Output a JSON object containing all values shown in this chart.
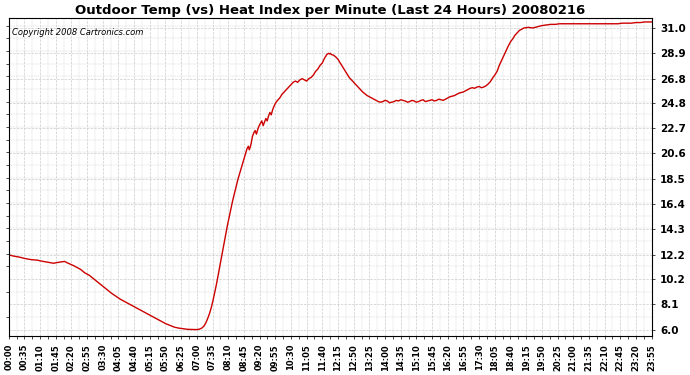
{
  "title": "Outdoor Temp (vs) Heat Index per Minute (Last 24 Hours) 20080216",
  "copyright": "Copyright 2008 Cartronics.com",
  "line_color": "#cc0000",
  "background_color": "#ffffff",
  "grid_color": "#cccccc",
  "yticks": [
    6.0,
    8.1,
    10.2,
    12.2,
    14.3,
    16.4,
    18.5,
    20.6,
    22.7,
    24.8,
    26.8,
    28.9,
    31.0
  ],
  "ylim": [
    5.5,
    31.8
  ],
  "xtick_labels": [
    "00:00",
    "00:35",
    "01:10",
    "01:45",
    "02:20",
    "02:55",
    "03:30",
    "04:05",
    "04:40",
    "05:15",
    "05:50",
    "06:25",
    "07:00",
    "07:35",
    "08:10",
    "08:45",
    "09:20",
    "09:55",
    "10:30",
    "11:05",
    "11:40",
    "12:15",
    "12:50",
    "13:25",
    "14:00",
    "14:35",
    "15:10",
    "15:45",
    "16:20",
    "16:55",
    "17:30",
    "18:05",
    "18:40",
    "19:15",
    "19:50",
    "20:25",
    "21:00",
    "21:35",
    "22:10",
    "22:45",
    "23:20",
    "23:55"
  ],
  "num_xticks": 42,
  "xlim_min": 0,
  "xlim_max": 1435,
  "curve_points": [
    [
      0,
      12.2
    ],
    [
      5,
      12.15
    ],
    [
      10,
      12.1
    ],
    [
      17,
      12.05
    ],
    [
      25,
      12.0
    ],
    [
      35,
      11.9
    ],
    [
      50,
      11.8
    ],
    [
      65,
      11.75
    ],
    [
      70,
      11.7
    ],
    [
      85,
      11.6
    ],
    [
      100,
      11.5
    ],
    [
      115,
      11.6
    ],
    [
      125,
      11.65
    ],
    [
      130,
      11.55
    ],
    [
      145,
      11.3
    ],
    [
      160,
      11.0
    ],
    [
      170,
      10.7
    ],
    [
      180,
      10.5
    ],
    [
      190,
      10.2
    ],
    [
      200,
      9.9
    ],
    [
      210,
      9.6
    ],
    [
      220,
      9.3
    ],
    [
      230,
      9.0
    ],
    [
      240,
      8.75
    ],
    [
      250,
      8.5
    ],
    [
      260,
      8.3
    ],
    [
      270,
      8.1
    ],
    [
      280,
      7.9
    ],
    [
      290,
      7.7
    ],
    [
      300,
      7.5
    ],
    [
      310,
      7.3
    ],
    [
      320,
      7.1
    ],
    [
      330,
      6.9
    ],
    [
      340,
      6.7
    ],
    [
      350,
      6.5
    ],
    [
      360,
      6.35
    ],
    [
      370,
      6.2
    ],
    [
      380,
      6.12
    ],
    [
      390,
      6.07
    ],
    [
      400,
      6.02
    ],
    [
      410,
      6.01
    ],
    [
      415,
      6.0
    ],
    [
      420,
      6.0
    ],
    [
      422,
      6.01
    ],
    [
      425,
      6.03
    ],
    [
      428,
      6.07
    ],
    [
      432,
      6.15
    ],
    [
      436,
      6.3
    ],
    [
      440,
      6.55
    ],
    [
      444,
      6.9
    ],
    [
      448,
      7.3
    ],
    [
      452,
      7.8
    ],
    [
      456,
      8.4
    ],
    [
      460,
      9.1
    ],
    [
      464,
      9.8
    ],
    [
      468,
      10.6
    ],
    [
      472,
      11.4
    ],
    [
      476,
      12.2
    ],
    [
      480,
      13.0
    ],
    [
      484,
      13.8
    ],
    [
      488,
      14.6
    ],
    [
      492,
      15.3
    ],
    [
      496,
      16.0
    ],
    [
      500,
      16.7
    ],
    [
      504,
      17.3
    ],
    [
      508,
      17.9
    ],
    [
      512,
      18.5
    ],
    [
      516,
      19.0
    ],
    [
      520,
      19.5
    ],
    [
      524,
      20.0
    ],
    [
      528,
      20.5
    ],
    [
      532,
      21.0
    ],
    [
      535,
      21.2
    ],
    [
      537,
      20.9
    ],
    [
      539,
      21.1
    ],
    [
      541,
      21.4
    ],
    [
      544,
      22.0
    ],
    [
      547,
      22.3
    ],
    [
      550,
      22.5
    ],
    [
      553,
      22.2
    ],
    [
      556,
      22.6
    ],
    [
      559,
      22.9
    ],
    [
      562,
      23.1
    ],
    [
      565,
      23.3
    ],
    [
      568,
      22.9
    ],
    [
      571,
      23.2
    ],
    [
      574,
      23.5
    ],
    [
      577,
      23.3
    ],
    [
      580,
      23.7
    ],
    [
      583,
      24.0
    ],
    [
      586,
      23.8
    ],
    [
      589,
      24.2
    ],
    [
      592,
      24.5
    ],
    [
      596,
      24.8
    ],
    [
      600,
      25.0
    ],
    [
      605,
      25.2
    ],
    [
      610,
      25.5
    ],
    [
      615,
      25.7
    ],
    [
      620,
      25.9
    ],
    [
      625,
      26.1
    ],
    [
      630,
      26.3
    ],
    [
      635,
      26.5
    ],
    [
      640,
      26.6
    ],
    [
      645,
      26.5
    ],
    [
      650,
      26.7
    ],
    [
      655,
      26.8
    ],
    [
      660,
      26.7
    ],
    [
      665,
      26.6
    ],
    [
      670,
      26.8
    ],
    [
      675,
      26.9
    ],
    [
      680,
      27.1
    ],
    [
      685,
      27.4
    ],
    [
      690,
      27.6
    ],
    [
      695,
      27.9
    ],
    [
      700,
      28.1
    ],
    [
      705,
      28.5
    ],
    [
      710,
      28.8
    ],
    [
      714,
      28.9
    ],
    [
      716,
      28.85
    ],
    [
      718,
      28.9
    ],
    [
      720,
      28.8
    ],
    [
      725,
      28.75
    ],
    [
      730,
      28.6
    ],
    [
      735,
      28.4
    ],
    [
      740,
      28.1
    ],
    [
      745,
      27.8
    ],
    [
      750,
      27.5
    ],
    [
      755,
      27.2
    ],
    [
      760,
      26.9
    ],
    [
      765,
      26.7
    ],
    [
      770,
      26.5
    ],
    [
      775,
      26.3
    ],
    [
      780,
      26.1
    ],
    [
      785,
      25.9
    ],
    [
      790,
      25.7
    ],
    [
      795,
      25.55
    ],
    [
      800,
      25.4
    ],
    [
      805,
      25.3
    ],
    [
      810,
      25.2
    ],
    [
      815,
      25.1
    ],
    [
      820,
      25.0
    ],
    [
      825,
      24.9
    ],
    [
      830,
      24.85
    ],
    [
      835,
      24.9
    ],
    [
      840,
      25.0
    ],
    [
      845,
      24.95
    ],
    [
      850,
      24.8
    ],
    [
      855,
      24.85
    ],
    [
      860,
      24.9
    ],
    [
      865,
      25.0
    ],
    [
      870,
      24.95
    ],
    [
      875,
      25.05
    ],
    [
      880,
      25.0
    ],
    [
      885,
      24.95
    ],
    [
      890,
      24.85
    ],
    [
      895,
      24.9
    ],
    [
      900,
      25.0
    ],
    [
      905,
      24.95
    ],
    [
      910,
      24.85
    ],
    [
      915,
      24.9
    ],
    [
      920,
      25.0
    ],
    [
      925,
      25.05
    ],
    [
      930,
      24.9
    ],
    [
      935,
      24.95
    ],
    [
      940,
      25.0
    ],
    [
      945,
      25.05
    ],
    [
      950,
      24.95
    ],
    [
      955,
      25.0
    ],
    [
      960,
      25.1
    ],
    [
      965,
      25.05
    ],
    [
      970,
      25.0
    ],
    [
      975,
      25.1
    ],
    [
      980,
      25.2
    ],
    [
      985,
      25.3
    ],
    [
      990,
      25.35
    ],
    [
      995,
      25.4
    ],
    [
      1000,
      25.5
    ],
    [
      1005,
      25.6
    ],
    [
      1010,
      25.65
    ],
    [
      1015,
      25.7
    ],
    [
      1020,
      25.8
    ],
    [
      1025,
      25.9
    ],
    [
      1030,
      26.0
    ],
    [
      1035,
      26.05
    ],
    [
      1040,
      26.0
    ],
    [
      1045,
      26.1
    ],
    [
      1050,
      26.15
    ],
    [
      1055,
      26.05
    ],
    [
      1060,
      26.1
    ],
    [
      1065,
      26.2
    ],
    [
      1070,
      26.35
    ],
    [
      1075,
      26.55
    ],
    [
      1080,
      26.85
    ],
    [
      1085,
      27.1
    ],
    [
      1090,
      27.4
    ],
    [
      1095,
      27.9
    ],
    [
      1100,
      28.3
    ],
    [
      1105,
      28.7
    ],
    [
      1110,
      29.1
    ],
    [
      1115,
      29.5
    ],
    [
      1120,
      29.85
    ],
    [
      1125,
      30.1
    ],
    [
      1130,
      30.4
    ],
    [
      1135,
      30.6
    ],
    [
      1140,
      30.8
    ],
    [
      1145,
      30.9
    ],
    [
      1150,
      31.0
    ],
    [
      1160,
      31.05
    ],
    [
      1170,
      31.0
    ],
    [
      1180,
      31.1
    ],
    [
      1190,
      31.2
    ],
    [
      1200,
      31.25
    ],
    [
      1210,
      31.3
    ],
    [
      1220,
      31.3
    ],
    [
      1230,
      31.35
    ],
    [
      1240,
      31.35
    ],
    [
      1250,
      31.35
    ],
    [
      1260,
      31.35
    ],
    [
      1270,
      31.35
    ],
    [
      1280,
      31.35
    ],
    [
      1290,
      31.35
    ],
    [
      1300,
      31.35
    ],
    [
      1310,
      31.35
    ],
    [
      1320,
      31.35
    ],
    [
      1330,
      31.35
    ],
    [
      1340,
      31.35
    ],
    [
      1350,
      31.35
    ],
    [
      1360,
      31.35
    ],
    [
      1370,
      31.4
    ],
    [
      1380,
      31.4
    ],
    [
      1390,
      31.4
    ],
    [
      1400,
      31.45
    ],
    [
      1410,
      31.45
    ],
    [
      1420,
      31.5
    ],
    [
      1430,
      31.5
    ],
    [
      1435,
      31.5
    ]
  ]
}
